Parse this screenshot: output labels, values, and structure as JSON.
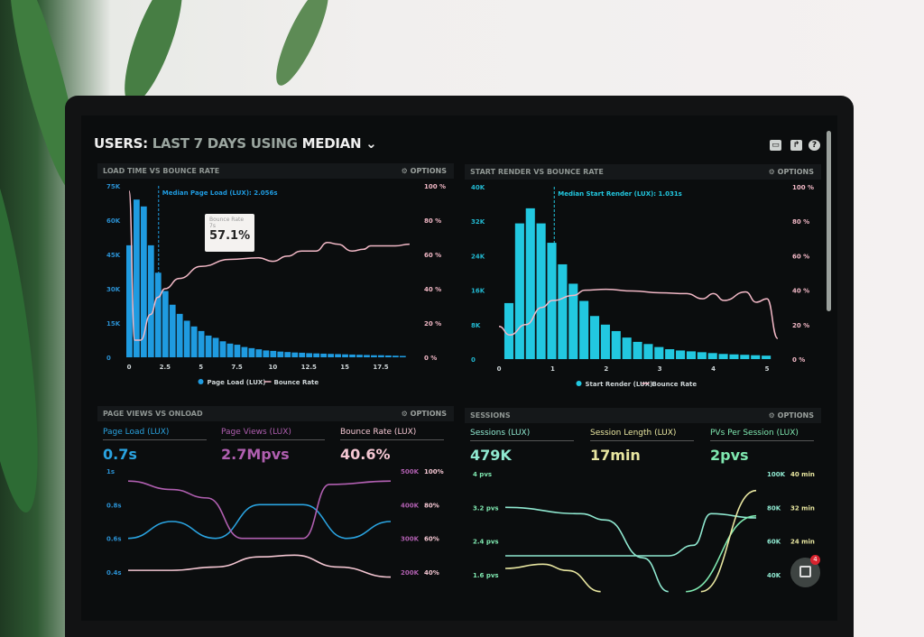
{
  "header": {
    "prefix": "USERS:",
    "range": "LAST 7 DAYS",
    "using": "USING",
    "method": "MEDIAN",
    "chevron": "chevron-down-icon"
  },
  "toolbar_icons": [
    "monitor-icon",
    "share-icon",
    "help-icon"
  ],
  "options_label": "OPTIONS",
  "panels": [
    {
      "title": "LOAD TIME VS BOUNCE RATE"
    },
    {
      "title": "START RENDER VS BOUNCE RATE"
    },
    {
      "title": "PAGE VIEWS VS ONLOAD",
      "kpis": [
        {
          "label": "Page Load (LUX)",
          "value": "0.7s",
          "color": "#2aa3e0"
        },
        {
          "label": "Page Views (LUX)",
          "value": "2.7Mpvs",
          "color": "#b05fb0"
        },
        {
          "label": "Bounce Rate (LUX)",
          "value": "40.6%",
          "color": "#f4c6d2"
        }
      ]
    },
    {
      "title": "SESSIONS",
      "kpis": [
        {
          "label": "Sessions (LUX)",
          "value": "479K",
          "color": "#8fe8d0"
        },
        {
          "label": "Session Length (LUX)",
          "value": "17min",
          "color": "#e8e6a0"
        },
        {
          "label": "PVs Per Session (LUX)",
          "value": "2pvs",
          "color": "#7fe8b0"
        }
      ]
    }
  ],
  "tooltip": {
    "title": "Bounce Rate",
    "sub": "7s",
    "value": "57.1%"
  },
  "chat": {
    "badge": "4"
  },
  "chart_data": [
    {
      "type": "bar",
      "title": "LOAD TIME VS BOUNCE RATE",
      "annotation": "Median Page Load (LUX): 2.056s",
      "median": 2.056,
      "x_ticks": [
        "0",
        "2.5",
        "5",
        "7.5",
        "10",
        "12.5",
        "15",
        "17.5"
      ],
      "y_ticks": [
        "0",
        "15K",
        "30K",
        "45K",
        "60K",
        "75K"
      ],
      "y2_ticks": [
        "0 %",
        "20 %",
        "40 %",
        "60 %",
        "80 %",
        "100 %"
      ],
      "ylim": [
        0,
        75000
      ],
      "y2lim": [
        0,
        100
      ],
      "xlim": [
        0,
        19.5
      ],
      "bin_width": 0.5,
      "legend": [
        "Page Load (LUX)",
        "Bounce Rate"
      ],
      "legend_position": "bottom",
      "colors": [
        "#1f9be0",
        "#f2b8c6"
      ],
      "bars": [
        49000,
        69000,
        66000,
        49000,
        37000,
        29000,
        23000,
        19000,
        16000,
        13500,
        11500,
        9500,
        8500,
        7000,
        6000,
        5500,
        4500,
        4000,
        3500,
        3000,
        2800,
        2500,
        2300,
        2100,
        2000,
        1800,
        1700,
        1600,
        1500,
        1400,
        1300,
        1200,
        1100,
        1000,
        900,
        900,
        800,
        700,
        600
      ],
      "line": [
        [
          0,
          97
        ],
        [
          0.4,
          10
        ],
        [
          0.8,
          10
        ],
        [
          1.5,
          25
        ],
        [
          2,
          35
        ],
        [
          2.5,
          40
        ],
        [
          3.5,
          46
        ],
        [
          5,
          53
        ],
        [
          7,
          57.1
        ],
        [
          9,
          58
        ],
        [
          10,
          56
        ],
        [
          11,
          59
        ],
        [
          12,
          62
        ],
        [
          13,
          62
        ],
        [
          13.8,
          67
        ],
        [
          14.5,
          66
        ],
        [
          15.5,
          62
        ],
        [
          16.3,
          63
        ],
        [
          16.8,
          65
        ],
        [
          18.5,
          65
        ],
        [
          19.5,
          66
        ]
      ]
    },
    {
      "type": "bar",
      "title": "START RENDER VS BOUNCE RATE",
      "annotation": "Median Start Render (LUX): 1.031s",
      "median": 1.031,
      "x_ticks": [
        "0",
        "1",
        "2",
        "3",
        "4",
        "5"
      ],
      "y_ticks": [
        "0",
        "8K",
        "16K",
        "24K",
        "32K",
        "40K"
      ],
      "y2_ticks": [
        "0 %",
        "20 %",
        "40 %",
        "60 %",
        "80 %",
        "100 %"
      ],
      "ylim": [
        0,
        40000
      ],
      "y2lim": [
        0,
        100
      ],
      "xlim": [
        0,
        5.2
      ],
      "bin_width": 0.2,
      "legend": [
        "Start Render (LUX)",
        "Bounce Rate"
      ],
      "legend_position": "bottom",
      "colors": [
        "#22c8e0",
        "#f2b8c6"
      ],
      "bars": [
        13000,
        31500,
        35000,
        31500,
        27000,
        22000,
        17500,
        13500,
        10000,
        8000,
        6500,
        5000,
        4000,
        3500,
        2800,
        2300,
        2000,
        1800,
        1600,
        1400,
        1200,
        1100,
        1000,
        900,
        800
      ],
      "line": [
        [
          0,
          19
        ],
        [
          0.2,
          14
        ],
        [
          0.5,
          20
        ],
        [
          0.8,
          30
        ],
        [
          1,
          34
        ],
        [
          1.4,
          37
        ],
        [
          1.6,
          40
        ],
        [
          2,
          40.5
        ],
        [
          2.5,
          39.5
        ],
        [
          3,
          38.5
        ],
        [
          3.5,
          38
        ],
        [
          3.8,
          35
        ],
        [
          4,
          38
        ],
        [
          4.2,
          34
        ],
        [
          4.6,
          39
        ],
        [
          4.8,
          33
        ],
        [
          5,
          35
        ],
        [
          5.2,
          12
        ]
      ]
    },
    {
      "type": "line",
      "title": "PAGE VIEWS VS ONLOAD",
      "y_ticks": [
        "1s",
        "0.8s",
        "0.6s",
        "0.4s"
      ],
      "y2_ticks": [
        "500K",
        "400K",
        "300K",
        "200K"
      ],
      "y3_ticks": [
        "100%",
        "80%",
        "60%",
        "40%"
      ],
      "series": [
        {
          "name": "Page Load (LUX)",
          "axis": "s",
          "ylim": [
            0.4,
            1
          ],
          "color": "#2aa3e0",
          "values": [
            [
              0,
              0.6
            ],
            [
              1,
              0.7
            ],
            [
              2,
              0.6
            ],
            [
              3,
              0.8
            ],
            [
              4,
              0.8
            ],
            [
              5,
              0.6
            ],
            [
              6,
              0.7
            ]
          ]
        },
        {
          "name": "Page Views (LUX)",
          "axis": "K",
          "ylim": [
            200,
            500
          ],
          "color": "#b05fb0",
          "values": [
            [
              0,
              470
            ],
            [
              1,
              445
            ],
            [
              1.8,
              420
            ],
            [
              2.6,
              300
            ],
            [
              4,
              300
            ],
            [
              4.6,
              460
            ],
            [
              6,
              470
            ]
          ]
        },
        {
          "name": "Bounce Rate (LUX)",
          "axis": "%",
          "ylim": [
            40,
            100
          ],
          "color": "#f4c6d2",
          "values": [
            [
              0,
              41
            ],
            [
              1,
              41
            ],
            [
              2,
              43
            ],
            [
              3,
              49
            ],
            [
              3.8,
              50
            ],
            [
              4.8,
              43
            ],
            [
              6,
              37
            ]
          ]
        }
      ]
    },
    {
      "type": "line",
      "title": "SESSIONS",
      "y_ticks": [
        "4 pvs",
        "3.2 pvs",
        "2.4 pvs",
        "1.6 pvs"
      ],
      "y2_ticks": [
        "100K",
        "80K",
        "60K",
        "40K"
      ],
      "y3_ticks": [
        "40 min",
        "32 min",
        "24 min"
      ],
      "series": [
        {
          "name": "PVs Per Session (LUX)",
          "color": "#8fe8d0",
          "ylim": [
            1.6,
            4
          ],
          "values": [
            [
              0,
              3.2
            ],
            [
              3,
              3.05
            ],
            [
              4,
              2.9
            ],
            [
              5.5,
              2.0
            ],
            [
              6.5,
              1.2
            ]
          ]
        },
        {
          "name": "Sessions (LUX)",
          "color": "#8fe8d0",
          "ylim": [
            1.6,
            4
          ],
          "values": [
            [
              0,
              2.05
            ],
            [
              5.5,
              2.05
            ],
            [
              6.5,
              2.05
            ],
            [
              7.5,
              2.3
            ],
            [
              8.2,
              3.05
            ],
            [
              10,
              2.95
            ]
          ]
        },
        {
          "name": "Sessions trend",
          "color": "#7fe8b0",
          "ylim": [
            1.6,
            4
          ],
          "values": [
            [
              7.2,
              1.2
            ],
            [
              10,
              3.0
            ]
          ]
        },
        {
          "name": "Session Length (LUX)",
          "color": "#e8e6a0",
          "ylim": [
            1.6,
            4
          ],
          "values": [
            [
              0,
              1.75
            ],
            [
              1.5,
              1.85
            ],
            [
              2.5,
              1.7
            ],
            [
              3.8,
              1.2
            ]
          ]
        },
        {
          "name": "Session Length trend",
          "color": "#e8e6a0",
          "ylim": [
            1.6,
            4
          ],
          "values": [
            [
              7.8,
              1.2
            ],
            [
              10,
              3.6
            ]
          ]
        }
      ]
    }
  ]
}
